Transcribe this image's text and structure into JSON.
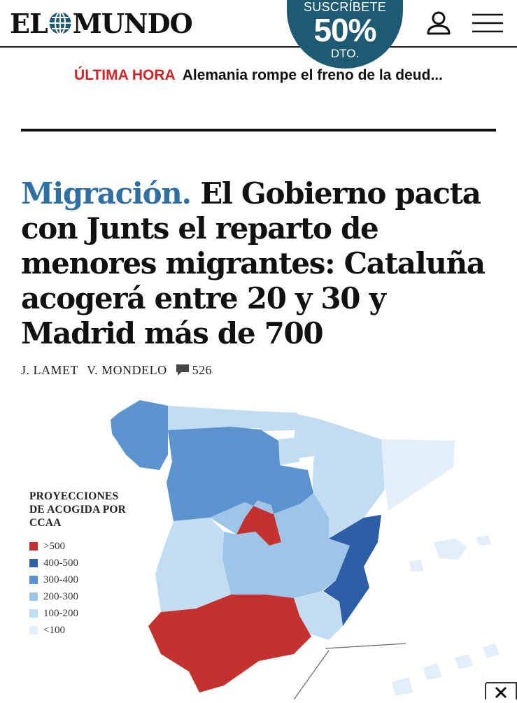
{
  "header": {
    "logo_left": "EL",
    "logo_right": "MUNDO",
    "subscribe": {
      "line1": "SUSCRÍBETE",
      "line2": "50%",
      "line3": "DTO."
    }
  },
  "breaking": {
    "tag": "ÚLTIMA HORA",
    "text": "Alemania rompe el freno de la deud..."
  },
  "article": {
    "kicker": "Migración.",
    "title": "El Gobierno pacta con Junts el reparto de menores migrantes: Cataluña acogerá entre 20 y 30 y Madrid más de 700",
    "authors": [
      "J. LAMET",
      "V. MONDELO"
    ],
    "comments": "526"
  },
  "map": {
    "legend_title": "PROYECCIONES\nDE ACOGIDA POR\nCCAA",
    "legend": [
      {
        "label": ">500",
        "color": "#c43230"
      },
      {
        "label": "400-500",
        "color": "#2e5ea6"
      },
      {
        "label": "300-400",
        "color": "#5b93cf"
      },
      {
        "label": "200-300",
        "color": "#9cc5e8"
      },
      {
        "label": "100-200",
        "color": "#c2dcf1"
      },
      {
        "label": "<100",
        "color": "#e2eef8"
      }
    ]
  },
  "colors": {
    "brand": "#1f5a73",
    "accent": "#d1232a",
    "kicker": "#2f6fa1"
  }
}
